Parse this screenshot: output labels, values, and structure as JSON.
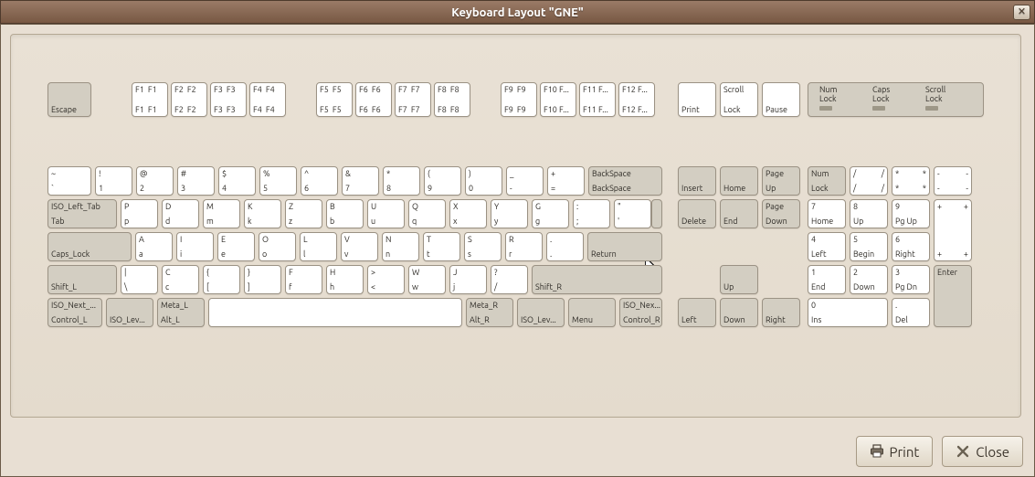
{
  "window": {
    "title": "Keyboard Layout \"GNE\""
  },
  "buttons": {
    "print": "Print",
    "close": "Close"
  },
  "key_fill": {
    "white": "#ffffff",
    "dark": "#d3cec2"
  },
  "locks": {
    "num": "Num\nLock",
    "caps": "Caps\nLock",
    "scroll": "Scroll\nLock"
  },
  "function_row": {
    "escape": "Escape",
    "f_keys": [
      {
        "label": "F1"
      },
      {
        "label": "F2"
      },
      {
        "label": "F3"
      },
      {
        "label": "F4"
      },
      {
        "label": "F5"
      },
      {
        "label": "F6"
      },
      {
        "label": "F7"
      },
      {
        "label": "F8"
      },
      {
        "label": "F9"
      },
      {
        "label": "F10 F..."
      },
      {
        "label": "F11 F..."
      },
      {
        "label": "F12 F..."
      }
    ],
    "print": "Print",
    "scroll_lock": "Scroll\nLock",
    "pause": "Pause"
  },
  "main": {
    "row1": [
      {
        "tl": "~",
        "bl": "`"
      },
      {
        "tl": "!",
        "bl": "1"
      },
      {
        "tl": "@",
        "bl": "2"
      },
      {
        "tl": "#",
        "bl": "3"
      },
      {
        "tl": "$",
        "bl": "4"
      },
      {
        "tl": "%",
        "bl": "5"
      },
      {
        "tl": "^",
        "bl": "6"
      },
      {
        "tl": "&",
        "bl": "7"
      },
      {
        "tl": "*",
        "bl": "8"
      },
      {
        "tl": "(",
        "bl": "9"
      },
      {
        "tl": ")",
        "bl": "0"
      },
      {
        "tl": "_",
        "bl": "-"
      },
      {
        "tl": "+",
        "bl": "="
      }
    ],
    "backspace": {
      "tl": "BackSpace",
      "bl": "BackSpace"
    },
    "tab": {
      "tl": "ISO_Left_Tab",
      "bl": "Tab"
    },
    "row2": [
      {
        "tl": "P",
        "bl": "p"
      },
      {
        "tl": "D",
        "bl": "d"
      },
      {
        "tl": "M",
        "bl": "m"
      },
      {
        "tl": "K",
        "bl": "k"
      },
      {
        "tl": "Z",
        "bl": "z"
      },
      {
        "tl": "B",
        "bl": "b"
      },
      {
        "tl": "U",
        "bl": "u"
      },
      {
        "tl": "Q",
        "bl": "q"
      },
      {
        "tl": "X",
        "bl": "x"
      },
      {
        "tl": "Y",
        "bl": "y"
      },
      {
        "tl": "G",
        "bl": "g"
      },
      {
        "tl": ":",
        "bl": ";"
      },
      {
        "tl": "\"",
        "bl": "'"
      }
    ],
    "caps": "Caps_Lock",
    "row3": [
      {
        "tl": "A",
        "bl": "a"
      },
      {
        "tl": "I",
        "bl": "i"
      },
      {
        "tl": "E",
        "bl": "e"
      },
      {
        "tl": "O",
        "bl": "o"
      },
      {
        "tl": "L",
        "bl": "l"
      },
      {
        "tl": "V",
        "bl": "v"
      },
      {
        "tl": "N",
        "bl": "n"
      },
      {
        "tl": "T",
        "bl": "t"
      },
      {
        "tl": "S",
        "bl": "s"
      },
      {
        "tl": "R",
        "bl": "r"
      },
      {
        "tl": ".",
        "bl": "."
      }
    ],
    "return": "Return",
    "shift_l": "Shift_L",
    "row4": [
      {
        "tl": "|",
        "bl": "\\"
      },
      {
        "tl": "C",
        "bl": "c"
      },
      {
        "tl": "{",
        "bl": "["
      },
      {
        "tl": "}",
        "bl": "]"
      },
      {
        "tl": "F",
        "bl": "f"
      },
      {
        "tl": "H",
        "bl": "h"
      },
      {
        "tl": ">",
        "bl": "<"
      },
      {
        "tl": "W",
        "bl": "w"
      },
      {
        "tl": "J",
        "bl": "j"
      },
      {
        "tl": "?",
        "bl": "/"
      }
    ],
    "shift_r": "Shift_R",
    "row5": {
      "iso_next": {
        "tl": "ISO_Next_...",
        "bl": "Control_L"
      },
      "iso_lev_l": "ISO_Lev...",
      "meta_l": {
        "tl": "Meta_L",
        "bl": "Alt_L"
      },
      "space": "",
      "meta_r": {
        "tl": "Meta_R",
        "bl": "Alt_R"
      },
      "iso_lev_r": "ISO_Lev...",
      "menu": "Menu",
      "iso_nex_r": {
        "tl": "ISO_Nex...",
        "bl": "Control_R"
      }
    }
  },
  "nav": {
    "insert": "Insert",
    "home": "Home",
    "pgup": "Page\nUp",
    "delete": "Delete",
    "end": "End",
    "pgdn": "Page\nDown",
    "up": "Up",
    "left": "Left",
    "down": "Down",
    "right": "Right"
  },
  "numpad": {
    "numlock": "Num\nLock",
    "slash": {
      "tl": "/",
      "tr": "/",
      "bl": "/",
      "br": "/"
    },
    "star": {
      "tl": "*",
      "tr": "*",
      "bl": "*",
      "br": "*"
    },
    "minus": {
      "tl": "-",
      "tr": "-",
      "bl": "-",
      "br": "-"
    },
    "plus": {
      "tl": "+",
      "tr": "+",
      "bl": "+",
      "br": "+"
    },
    "enter": "Enter",
    "keys": {
      "n7": {
        "tl": "7",
        "bl": "Home"
      },
      "n8": {
        "tl": "8",
        "bl": "Up"
      },
      "n9": {
        "tl": "9",
        "bl": "Pg Up"
      },
      "n4": {
        "tl": "4",
        "bl": "Left"
      },
      "n5": {
        "tl": "5",
        "bl": "Begin"
      },
      "n6": {
        "tl": "6",
        "bl": "Right"
      },
      "n1": {
        "tl": "1",
        "bl": "End"
      },
      "n2": {
        "tl": "2",
        "bl": "Down"
      },
      "n3": {
        "tl": "3",
        "bl": "Pg Dn"
      },
      "n0": {
        "tl": "0",
        "bl": "Ins"
      },
      "ndot": {
        "tl": ".",
        "bl": "Del"
      }
    }
  }
}
